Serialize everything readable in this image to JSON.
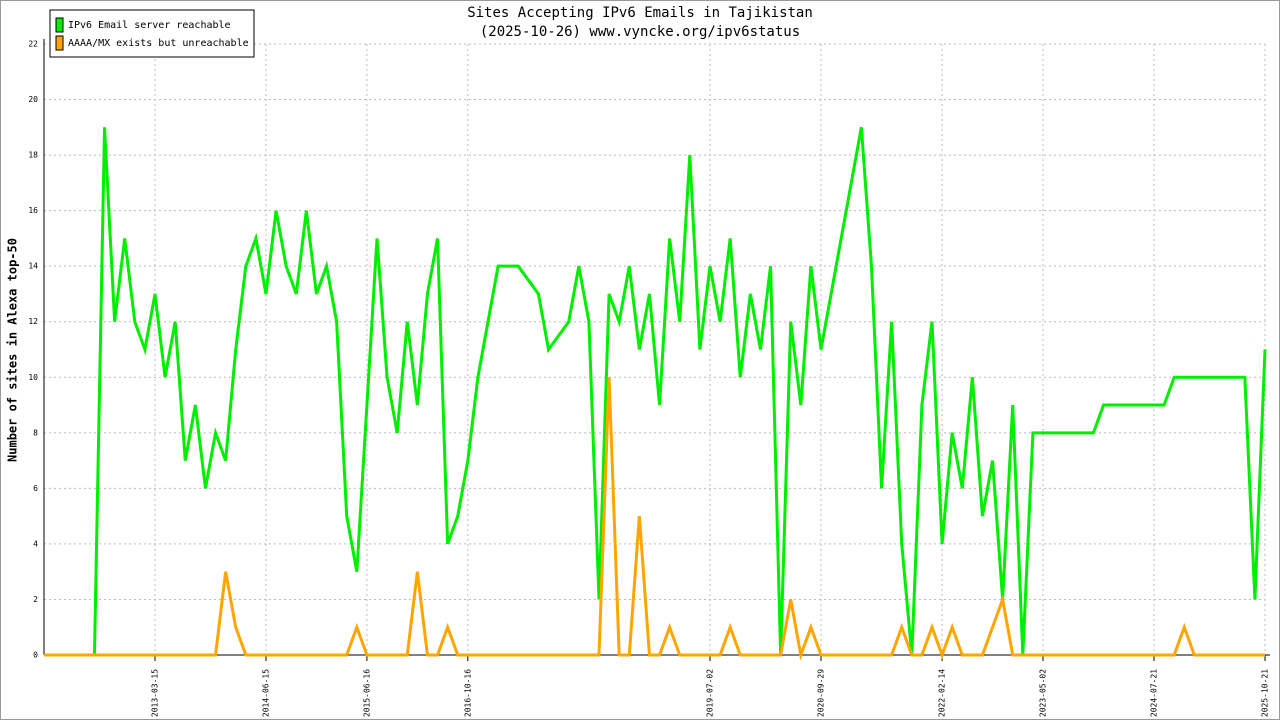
{
  "chart_data": {
    "type": "line",
    "title": "Sites Accepting IPv6 Emails in Tajikistan",
    "subtitle": "(2025-10-26) www.vyncke.org/ipv6status",
    "y_label": "Number of sites in Alexa top-50",
    "categories": [
      null,
      null,
      null,
      null,
      null,
      null,
      null,
      null,
      null,
      null,
      null,
      "2013-03-15",
      null,
      null,
      null,
      null,
      null,
      null,
      null,
      null,
      null,
      null,
      "2014-06-15",
      null,
      null,
      null,
      null,
      null,
      null,
      null,
      null,
      null,
      "2015-06-16",
      null,
      null,
      null,
      null,
      null,
      null,
      null,
      null,
      null,
      "2016-10-16",
      null,
      null,
      null,
      null,
      null,
      null,
      null,
      null,
      null,
      null,
      null,
      null,
      null,
      null,
      null,
      null,
      null,
      null,
      null,
      null,
      null,
      null,
      null,
      "2019-07-02",
      null,
      null,
      null,
      null,
      null,
      null,
      null,
      null,
      null,
      null,
      "2020-09-29",
      null,
      null,
      null,
      null,
      null,
      null,
      null,
      null,
      null,
      null,
      null,
      "2022-02-14",
      null,
      null,
      null,
      null,
      null,
      null,
      null,
      null,
      null,
      "2023-05-02",
      null,
      null,
      null,
      null,
      null,
      null,
      null,
      null,
      null,
      null,
      "2024-07-21",
      null,
      null,
      null,
      null,
      null,
      null,
      null,
      null,
      null,
      null,
      "2025-10-21"
    ],
    "series": [
      {
        "name": "IPv6 Email server reachable",
        "color": "#00ee00",
        "values": [
          0,
          0,
          0,
          0,
          0,
          0,
          19,
          12,
          15,
          12,
          11,
          13,
          10,
          12,
          7,
          9,
          6,
          8,
          7,
          11,
          14,
          15,
          13,
          16,
          14,
          13,
          16,
          13,
          14,
          12,
          5,
          3,
          9,
          15,
          10,
          8,
          12,
          9,
          13,
          15,
          4,
          5,
          7,
          10,
          12,
          14,
          14,
          14,
          13.5,
          13,
          11,
          11.5,
          12,
          14,
          12,
          2,
          13,
          12,
          14,
          11,
          13,
          9,
          15,
          12,
          18,
          11,
          14,
          12,
          15,
          10,
          13,
          11,
          14,
          0,
          12,
          9,
          14,
          11,
          13,
          15,
          17,
          19,
          14,
          6,
          12,
          4,
          0,
          9,
          12,
          4,
          8,
          6,
          10,
          5,
          7,
          2,
          9,
          0,
          8,
          8,
          8,
          8,
          8,
          8,
          8,
          9,
          9,
          9,
          9,
          9,
          9,
          9,
          10,
          10,
          10,
          10,
          10,
          10,
          10,
          10,
          2,
          11
        ]
      },
      {
        "name": "AAAA/MX exists but unreachable",
        "color": "#ffa500",
        "values": [
          0,
          0,
          0,
          0,
          0,
          0,
          0,
          0,
          0,
          0,
          0,
          0,
          0,
          0,
          0,
          0,
          0,
          0,
          3,
          1,
          0,
          0,
          0,
          0,
          0,
          0,
          0,
          0,
          0,
          0,
          0,
          1,
          0,
          0,
          0,
          0,
          0,
          3,
          0,
          0,
          1,
          0,
          0,
          0,
          0,
          0,
          0,
          0,
          0,
          0,
          0,
          0,
          0,
          0,
          0,
          0,
          10,
          0,
          0,
          5,
          0,
          0,
          1,
          0,
          0,
          0,
          0,
          0,
          1,
          0,
          0,
          0,
          0,
          0,
          2,
          0,
          1,
          0,
          0,
          0,
          0,
          0,
          0,
          0,
          0,
          1,
          0,
          0,
          1,
          0,
          1,
          0,
          0,
          0,
          1,
          2,
          0,
          0,
          0,
          0,
          0,
          0,
          0,
          0,
          0,
          0,
          0,
          0,
          0,
          0,
          0,
          0,
          0,
          1,
          0,
          0,
          0,
          0,
          0,
          0,
          0,
          0
        ]
      }
    ],
    "ylim": [
      0,
      22
    ],
    "yticks": [
      0,
      2,
      4,
      6,
      8,
      10,
      12,
      14,
      16,
      18,
      20,
      22
    ],
    "grid": true
  }
}
